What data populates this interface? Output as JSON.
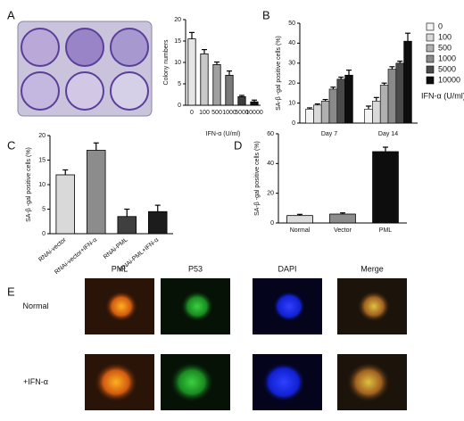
{
  "chart_data": [
    {
      "type": "bar",
      "panel": "A",
      "ylabel": "Colony numbers",
      "xlabel": "IFN-α (U/ml)",
      "categories": [
        "0",
        "100",
        "500",
        "1000",
        "5000",
        "10000"
      ],
      "values": [
        15.5,
        12,
        9.5,
        7,
        2,
        0.8
      ],
      "errors": [
        1.5,
        1,
        0.6,
        1,
        0.3,
        0.4
      ],
      "colors": [
        "#e6e6e6",
        "#c8c8c8",
        "#a0a0a0",
        "#7a7a7a",
        "#3c3c3c",
        "#111111"
      ],
      "ylim": [
        0,
        20
      ],
      "yticks": [
        0,
        5,
        10,
        15,
        20
      ]
    },
    {
      "type": "grouped-bar",
      "panel": "B",
      "ylabel": "SA-β -gal positive cells (%)",
      "legend_title": "IFN-α (U/ml)",
      "categories": [
        "Day 7",
        "Day 14"
      ],
      "series": [
        {
          "name": "0",
          "color": "#f4f4f4",
          "values": [
            7,
            7
          ],
          "errors": [
            0.6,
            1.5
          ]
        },
        {
          "name": "100",
          "color": "#d9d9d9",
          "values": [
            9,
            11
          ],
          "errors": [
            0.6,
            1.8
          ]
        },
        {
          "name": "500",
          "color": "#b0b0b0",
          "values": [
            11,
            19
          ],
          "errors": [
            0.8,
            1
          ]
        },
        {
          "name": "1000",
          "color": "#8a8a8a",
          "values": [
            17,
            27
          ],
          "errors": [
            1,
            1.2
          ]
        },
        {
          "name": "5000",
          "color": "#4a4a4a",
          "values": [
            22,
            30
          ],
          "errors": [
            1,
            1
          ]
        },
        {
          "name": "10000",
          "color": "#0d0d0d",
          "values": [
            24,
            41
          ],
          "errors": [
            2.5,
            4
          ]
        }
      ],
      "ylim": [
        0,
        50
      ],
      "yticks": [
        0,
        10,
        20,
        30,
        40,
        50
      ]
    },
    {
      "type": "bar",
      "panel": "C",
      "ylabel": "SA-β -gal positive cells (%)",
      "categories": [
        "RNAi-vector",
        "RNAi-vector+IFN-α",
        "RNAi-PML",
        "RNAi-PML+IFN-α"
      ],
      "values": [
        12,
        17,
        3.5,
        4.5
      ],
      "errors": [
        1,
        1.5,
        1.5,
        1.3
      ],
      "colors": [
        "#d9d9d9",
        "#8c8c8c",
        "#3f3f3f",
        "#1c1c1c"
      ],
      "ylim": [
        0,
        20
      ],
      "yticks": [
        0,
        5,
        10,
        15,
        20
      ]
    },
    {
      "type": "bar",
      "panel": "D",
      "ylabel": "SA-β -gal positive cells (%)",
      "categories": [
        "Normal",
        "Vector",
        "PML"
      ],
      "values": [
        5,
        6,
        48
      ],
      "errors": [
        0.8,
        0.8,
        3
      ],
      "colors": [
        "#dcdcdc",
        "#8c8c8c",
        "#0d0d0d"
      ],
      "ylim": [
        0,
        60
      ],
      "yticks": [
        0,
        20,
        40,
        60
      ]
    },
    {
      "type": "image-grid",
      "panel": "E",
      "columns": [
        "PML",
        "P53",
        "DAPI",
        "Merge"
      ],
      "rows": [
        "Normal",
        "+IFN-α"
      ]
    }
  ]
}
